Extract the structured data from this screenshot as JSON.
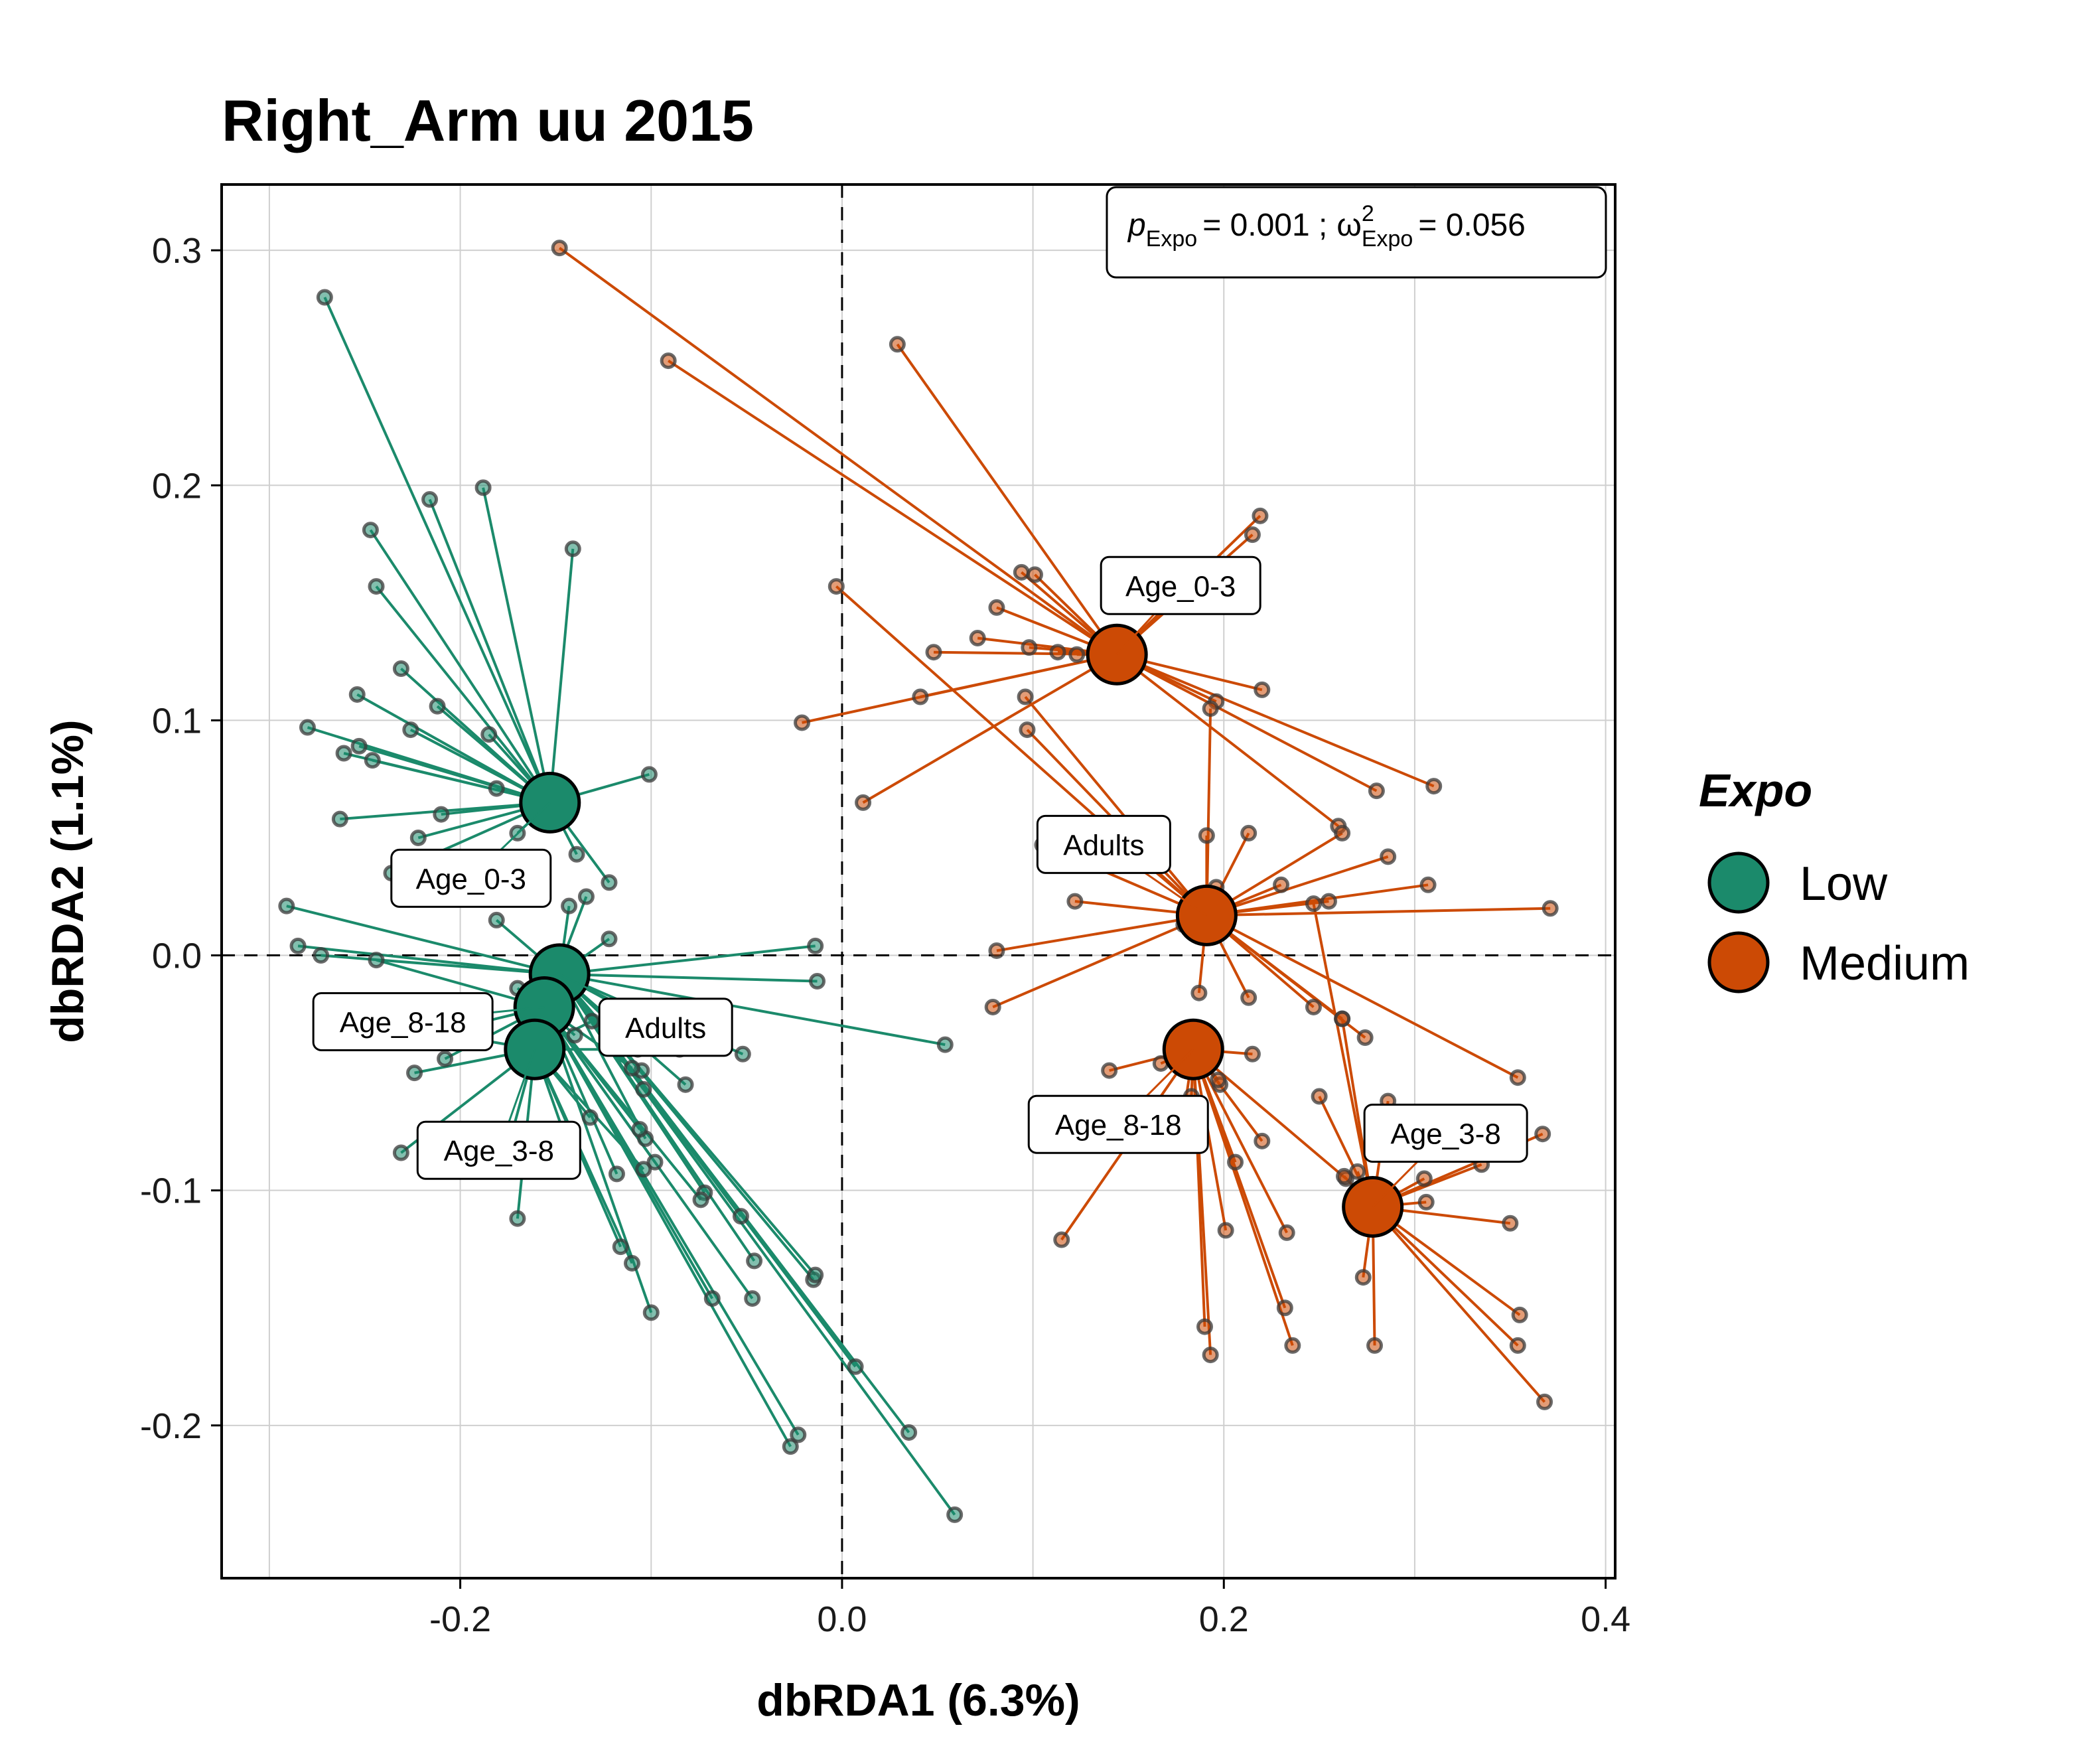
{
  "chart_data": {
    "type": "scatter",
    "title": "Right_Arm uu 2015",
    "xlabel": "dbRDA1 (6.3%)",
    "ylabel": "dbRDA2 (1.1%)",
    "xlim": [
      -0.325,
      0.405
    ],
    "ylim": [
      -0.265,
      0.328
    ],
    "x_ticks": [
      -0.2,
      0.0,
      0.2,
      0.4
    ],
    "x_tick_labels": [
      "-0.2",
      "0.0",
      "0.2",
      "0.4"
    ],
    "y_ticks": [
      -0.2,
      -0.1,
      0.0,
      0.1,
      0.2,
      0.3
    ],
    "y_tick_labels": [
      "-0.2",
      "-0.1",
      "0.0",
      "0.1",
      "0.2",
      "0.3"
    ],
    "grid": true,
    "reference_lines": {
      "x": 0,
      "y": 0,
      "style": "dashed"
    },
    "annotation": {
      "p_symbol": "p",
      "p_subscript": "Expo",
      "p_value": "= 0.001 ;",
      "omega_symbol": "ω",
      "omega_superscript": "2",
      "omega_subscript": "Expo",
      "omega_value": "= 0.056"
    },
    "legend": {
      "title": "Expo",
      "position": "right",
      "items": [
        {
          "label": "Low",
          "color": "#1b8a6b"
        },
        {
          "label": "Medium",
          "color": "#cc4a05"
        }
      ]
    },
    "series": [
      {
        "name": "Low",
        "color": "#1b8a6b",
        "centroids": [
          {
            "label": "Age_0-3",
            "x": -0.153,
            "y": 0.065
          },
          {
            "label": "Adults",
            "x": -0.148,
            "y": -0.008
          },
          {
            "label": "Age_8-18",
            "x": -0.156,
            "y": -0.022
          },
          {
            "label": "Age_3-8",
            "x": -0.161,
            "y": -0.04
          }
        ],
        "points": [
          {
            "x": -0.271,
            "y": 0.28,
            "g": 0
          },
          {
            "x": -0.216,
            "y": 0.194,
            "g": 0
          },
          {
            "x": -0.188,
            "y": 0.199,
            "g": 0
          },
          {
            "x": -0.141,
            "y": 0.173,
            "g": 0
          },
          {
            "x": -0.247,
            "y": 0.181,
            "g": 0
          },
          {
            "x": -0.244,
            "y": 0.157,
            "g": 0
          },
          {
            "x": -0.231,
            "y": 0.122,
            "g": 0
          },
          {
            "x": -0.254,
            "y": 0.111,
            "g": 0
          },
          {
            "x": -0.212,
            "y": 0.106,
            "g": 0
          },
          {
            "x": -0.28,
            "y": 0.097,
            "g": 0
          },
          {
            "x": -0.226,
            "y": 0.096,
            "g": 0
          },
          {
            "x": -0.185,
            "y": 0.094,
            "g": 0
          },
          {
            "x": -0.253,
            "y": 0.089,
            "g": 0
          },
          {
            "x": -0.261,
            "y": 0.086,
            "g": 0
          },
          {
            "x": -0.246,
            "y": 0.083,
            "g": 0
          },
          {
            "x": -0.101,
            "y": 0.077,
            "g": 0
          },
          {
            "x": -0.263,
            "y": 0.058,
            "g": 0
          },
          {
            "x": -0.222,
            "y": 0.05,
            "g": 0
          },
          {
            "x": -0.17,
            "y": 0.052,
            "g": 0
          },
          {
            "x": -0.21,
            "y": 0.06,
            "g": 0
          },
          {
            "x": -0.181,
            "y": 0.071,
            "g": 0
          },
          {
            "x": -0.139,
            "y": 0.043,
            "g": 0
          },
          {
            "x": -0.236,
            "y": 0.035,
            "g": 0
          },
          {
            "x": -0.122,
            "y": 0.031,
            "g": 0
          },
          {
            "x": -0.291,
            "y": 0.021,
            "g": 1
          },
          {
            "x": -0.285,
            "y": 0.004,
            "g": 1
          },
          {
            "x": -0.273,
            "y": 0.0,
            "g": 1
          },
          {
            "x": -0.181,
            "y": 0.015,
            "g": 1
          },
          {
            "x": -0.014,
            "y": 0.004,
            "g": 1
          },
          {
            "x": -0.013,
            "y": -0.011,
            "g": 1
          },
          {
            "x": 0.054,
            "y": -0.038,
            "g": 1
          },
          {
            "x": -0.052,
            "y": -0.042,
            "g": 1
          },
          {
            "x": -0.08,
            "y": -0.038,
            "g": 1
          },
          {
            "x": -0.107,
            "y": -0.04,
            "g": 1
          },
          {
            "x": -0.143,
            "y": 0.021,
            "g": 1
          },
          {
            "x": -0.122,
            "y": 0.007,
            "g": 1
          },
          {
            "x": -0.105,
            "y": -0.049,
            "g": 1
          },
          {
            "x": -0.082,
            "y": -0.055,
            "g": 1
          },
          {
            "x": -0.104,
            "y": -0.057,
            "g": 1
          },
          {
            "x": -0.103,
            "y": -0.078,
            "g": 1
          },
          {
            "x": -0.072,
            "y": -0.101,
            "g": 1
          },
          {
            "x": -0.053,
            "y": -0.111,
            "g": 1
          },
          {
            "x": -0.046,
            "y": -0.13,
            "g": 1
          },
          {
            "x": -0.015,
            "y": -0.138,
            "g": 1
          },
          {
            "x": -0.014,
            "y": -0.136,
            "g": 1
          },
          {
            "x": 0.007,
            "y": -0.175,
            "g": 1
          },
          {
            "x": 0.059,
            "y": -0.238,
            "g": 1
          },
          {
            "x": 0.035,
            "y": -0.203,
            "g": 1
          },
          {
            "x": -0.047,
            "y": -0.146,
            "g": 2
          },
          {
            "x": -0.098,
            "y": -0.088,
            "g": 2
          },
          {
            "x": -0.146,
            "y": 0.0,
            "g": 2
          },
          {
            "x": -0.134,
            "y": 0.025,
            "g": 2
          },
          {
            "x": -0.244,
            "y": -0.002,
            "g": 2
          },
          {
            "x": -0.212,
            "y": -0.033,
            "g": 2
          },
          {
            "x": -0.208,
            "y": -0.044,
            "g": 2
          },
          {
            "x": -0.17,
            "y": -0.014,
            "g": 2
          },
          {
            "x": -0.14,
            "y": -0.034,
            "g": 2
          },
          {
            "x": -0.11,
            "y": -0.048,
            "g": 2
          },
          {
            "x": -0.074,
            "y": -0.104,
            "g": 2
          },
          {
            "x": -0.068,
            "y": -0.146,
            "g": 2
          },
          {
            "x": -0.1,
            "y": -0.152,
            "g": 2
          },
          {
            "x": -0.027,
            "y": -0.209,
            "g": 2
          },
          {
            "x": -0.023,
            "y": -0.204,
            "g": 2
          },
          {
            "x": -0.106,
            "y": -0.074,
            "g": 2
          },
          {
            "x": -0.118,
            "y": -0.093,
            "g": 2
          },
          {
            "x": -0.224,
            "y": -0.05,
            "g": 3
          },
          {
            "x": -0.196,
            "y": -0.035,
            "g": 3
          },
          {
            "x": -0.231,
            "y": -0.084,
            "g": 3
          },
          {
            "x": -0.175,
            "y": -0.082,
            "g": 3
          },
          {
            "x": -0.17,
            "y": -0.112,
            "g": 3
          },
          {
            "x": -0.146,
            "y": -0.075,
            "g": 3
          },
          {
            "x": -0.132,
            "y": -0.069,
            "g": 3
          },
          {
            "x": -0.116,
            "y": -0.124,
            "g": 3
          },
          {
            "x": -0.11,
            "y": -0.131,
            "g": 3
          },
          {
            "x": -0.104,
            "y": -0.091,
            "g": 3
          },
          {
            "x": -0.085,
            "y": -0.04,
            "g": 3
          },
          {
            "x": -0.131,
            "y": -0.028,
            "g": 3
          }
        ]
      },
      {
        "name": "Medium",
        "color": "#cc4a05",
        "centroids": [
          {
            "label": "Age_0-3",
            "x": 0.144,
            "y": 0.128
          },
          {
            "label": "Adults",
            "x": 0.191,
            "y": 0.017
          },
          {
            "label": "Age_8-18",
            "x": 0.184,
            "y": -0.04
          },
          {
            "label": "Age_3-8",
            "x": 0.278,
            "y": -0.107
          }
        ],
        "points": [
          {
            "x": -0.148,
            "y": 0.301,
            "g": 0
          },
          {
            "x": -0.091,
            "y": 0.253,
            "g": 0
          },
          {
            "x": 0.029,
            "y": 0.26,
            "g": 0
          },
          {
            "x": 0.219,
            "y": 0.187,
            "g": 0
          },
          {
            "x": 0.215,
            "y": 0.179,
            "g": 0
          },
          {
            "x": 0.094,
            "y": 0.163,
            "g": 0
          },
          {
            "x": 0.101,
            "y": 0.162,
            "g": 0
          },
          {
            "x": 0.081,
            "y": 0.148,
            "g": 0
          },
          {
            "x": 0.071,
            "y": 0.135,
            "g": 0
          },
          {
            "x": 0.098,
            "y": 0.131,
            "g": 0
          },
          {
            "x": 0.113,
            "y": 0.129,
            "g": 0
          },
          {
            "x": 0.048,
            "y": 0.129,
            "g": 0
          },
          {
            "x": 0.123,
            "y": 0.128,
            "g": 0
          },
          {
            "x": 0.041,
            "y": 0.11,
            "g": 0
          },
          {
            "x": 0.22,
            "y": 0.113,
            "g": 0
          },
          {
            "x": 0.196,
            "y": 0.108,
            "g": 0
          },
          {
            "x": -0.021,
            "y": 0.099,
            "g": 0
          },
          {
            "x": 0.011,
            "y": 0.065,
            "g": 0
          },
          {
            "x": 0.31,
            "y": 0.072,
            "g": 0
          },
          {
            "x": 0.28,
            "y": 0.07,
            "g": 0
          },
          {
            "x": 0.26,
            "y": 0.055,
            "g": 0
          },
          {
            "x": -0.003,
            "y": 0.157,
            "g": 1
          },
          {
            "x": 0.096,
            "y": 0.11,
            "g": 1
          },
          {
            "x": 0.097,
            "y": 0.096,
            "g": 1
          },
          {
            "x": 0.193,
            "y": 0.105,
            "g": 1
          },
          {
            "x": 0.105,
            "y": 0.047,
            "g": 1
          },
          {
            "x": 0.136,
            "y": 0.055,
            "g": 1
          },
          {
            "x": 0.191,
            "y": 0.051,
            "g": 1
          },
          {
            "x": 0.213,
            "y": 0.052,
            "g": 1
          },
          {
            "x": 0.23,
            "y": 0.03,
            "g": 1
          },
          {
            "x": 0.262,
            "y": 0.052,
            "g": 1
          },
          {
            "x": 0.286,
            "y": 0.042,
            "g": 1
          },
          {
            "x": 0.307,
            "y": 0.03,
            "g": 1
          },
          {
            "x": 0.371,
            "y": 0.02,
            "g": 1
          },
          {
            "x": 0.081,
            "y": 0.002,
            "g": 1
          },
          {
            "x": 0.079,
            "y": -0.022,
            "g": 1
          },
          {
            "x": 0.122,
            "y": 0.023,
            "g": 1
          },
          {
            "x": 0.196,
            "y": 0.029,
            "g": 1
          },
          {
            "x": 0.213,
            "y": -0.018,
            "g": 1
          },
          {
            "x": 0.247,
            "y": -0.022,
            "g": 1
          },
          {
            "x": 0.262,
            "y": -0.027,
            "g": 1
          },
          {
            "x": 0.274,
            "y": -0.035,
            "g": 1
          },
          {
            "x": 0.354,
            "y": -0.052,
            "g": 1
          },
          {
            "x": 0.255,
            "y": 0.023,
            "g": 1
          },
          {
            "x": 0.179,
            "y": 0.013,
            "g": 1
          },
          {
            "x": 0.187,
            "y": -0.016,
            "g": 1
          },
          {
            "x": 0.167,
            "y": -0.046,
            "g": 2
          },
          {
            "x": 0.115,
            "y": -0.121,
            "g": 2
          },
          {
            "x": 0.14,
            "y": -0.049,
            "g": 2
          },
          {
            "x": 0.178,
            "y": -0.073,
            "g": 2
          },
          {
            "x": 0.183,
            "y": -0.06,
            "g": 2
          },
          {
            "x": 0.198,
            "y": -0.055,
            "g": 2
          },
          {
            "x": 0.206,
            "y": -0.088,
            "g": 2
          },
          {
            "x": 0.22,
            "y": -0.079,
            "g": 2
          },
          {
            "x": 0.233,
            "y": -0.118,
            "g": 2
          },
          {
            "x": 0.19,
            "y": -0.158,
            "g": 2
          },
          {
            "x": 0.193,
            "y": -0.17,
            "g": 2
          },
          {
            "x": 0.201,
            "y": -0.117,
            "g": 2
          },
          {
            "x": 0.232,
            "y": -0.15,
            "g": 2
          },
          {
            "x": 0.236,
            "y": -0.166,
            "g": 2
          },
          {
            "x": 0.264,
            "y": -0.095,
            "g": 2
          },
          {
            "x": 0.197,
            "y": -0.053,
            "g": 2
          },
          {
            "x": 0.215,
            "y": -0.042,
            "g": 2
          },
          {
            "x": 0.263,
            "y": -0.094,
            "g": 3
          },
          {
            "x": 0.27,
            "y": -0.092,
            "g": 3
          },
          {
            "x": 0.273,
            "y": -0.137,
            "g": 3
          },
          {
            "x": 0.279,
            "y": -0.166,
            "g": 3
          },
          {
            "x": 0.305,
            "y": -0.095,
            "g": 3
          },
          {
            "x": 0.306,
            "y": -0.105,
            "g": 3
          },
          {
            "x": 0.335,
            "y": -0.089,
            "g": 3
          },
          {
            "x": 0.35,
            "y": -0.114,
            "g": 3
          },
          {
            "x": 0.355,
            "y": -0.153,
            "g": 3
          },
          {
            "x": 0.354,
            "y": -0.166,
            "g": 3
          },
          {
            "x": 0.367,
            "y": -0.076,
            "g": 3
          },
          {
            "x": 0.368,
            "y": -0.19,
            "g": 3
          },
          {
            "x": 0.25,
            "y": -0.06,
            "g": 3
          },
          {
            "x": 0.262,
            "y": -0.027,
            "g": 3
          },
          {
            "x": 0.286,
            "y": -0.062,
            "g": 3
          },
          {
            "x": 0.247,
            "y": 0.022,
            "g": 3
          }
        ]
      }
    ]
  }
}
